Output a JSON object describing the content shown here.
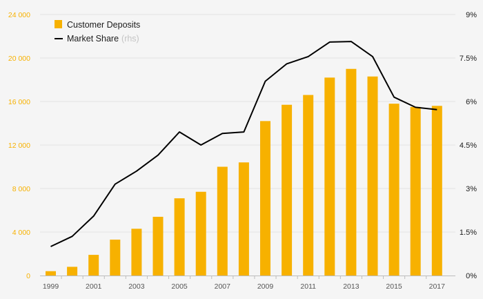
{
  "chart_data": {
    "type": "bar+line",
    "categories": [
      1999,
      2000,
      2001,
      2002,
      2003,
      2004,
      2005,
      2006,
      2007,
      2008,
      2009,
      2010,
      2011,
      2012,
      2013,
      2014,
      2015,
      2016,
      2017
    ],
    "series": [
      {
        "name": "Customer Deposits",
        "type": "bar",
        "axis": "left",
        "values": [
          400,
          800,
          1900,
          3300,
          4300,
          5400,
          7100,
          7700,
          10000,
          10400,
          14200,
          15700,
          16600,
          18200,
          19000,
          18300,
          15800,
          15500,
          15600
        ]
      },
      {
        "name": "Market Share",
        "name_suffix": "(rhs)",
        "type": "line",
        "axis": "right",
        "values": [
          1.0,
          1.35,
          2.05,
          3.15,
          3.6,
          4.15,
          4.95,
          4.5,
          4.9,
          4.95,
          6.7,
          7.3,
          7.55,
          8.05,
          8.07,
          7.55,
          6.15,
          5.8,
          5.72
        ]
      }
    ],
    "left_axis": {
      "range": [
        0,
        24000
      ],
      "ticks": [
        0,
        4000,
        8000,
        12000,
        16000,
        20000,
        24000
      ],
      "tick_labels": [
        "0",
        "4 000",
        "8 000",
        "12 000",
        "16 000",
        "20 000",
        "24 000"
      ]
    },
    "right_axis": {
      "range": [
        0,
        9
      ],
      "ticks": [
        0,
        1.5,
        3,
        4.5,
        6,
        7.5,
        9
      ],
      "tick_labels": [
        "0%",
        "1.5%",
        "3%",
        "4.5%",
        "6%",
        "7.5%",
        "9%"
      ]
    },
    "x_tick_labels": [
      "1999",
      "2001",
      "2003",
      "2005",
      "2007",
      "2009",
      "2011",
      "2013",
      "2015",
      "2017"
    ],
    "legend": {
      "position": "top-left",
      "items": [
        {
          "label": "Customer Deposits",
          "suffix": ""
        },
        {
          "label": "Market Share",
          "suffix": "(rhs)"
        }
      ]
    },
    "grid": true
  },
  "colors": {
    "bar": "#f7b100",
    "line": "#000000",
    "left_axis_text": "#f7b100",
    "grid": "#e3e3e3",
    "background": "#f5f5f5"
  }
}
